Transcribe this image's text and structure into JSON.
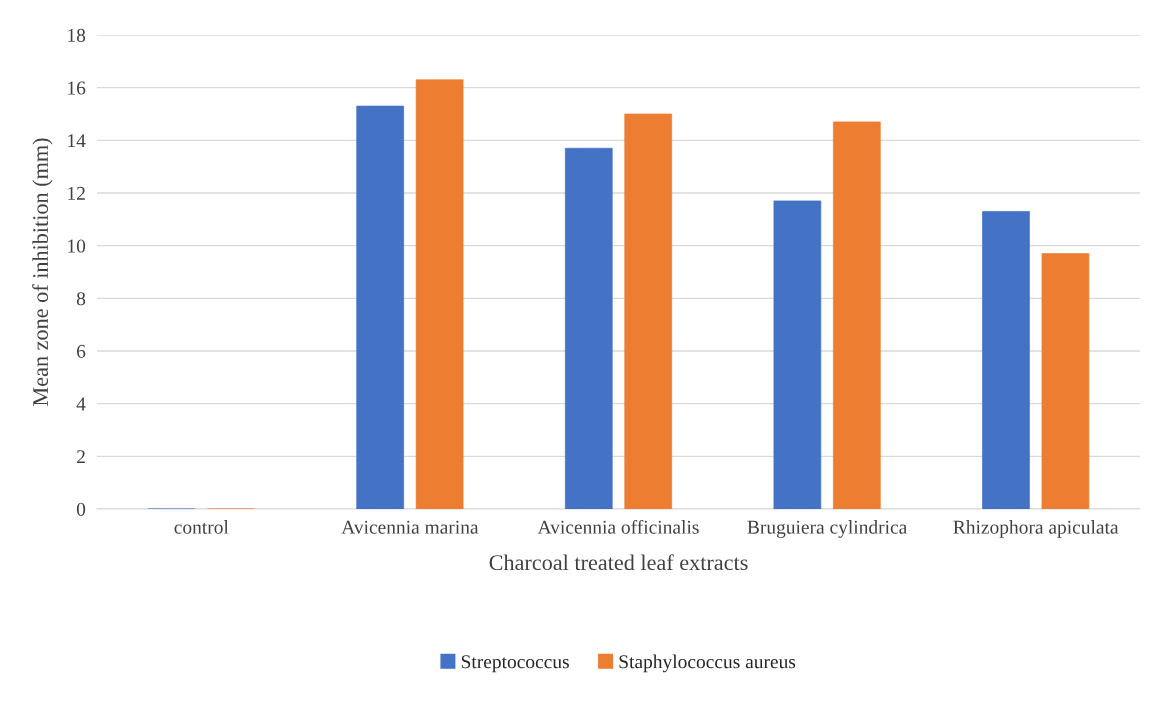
{
  "chart_data": {
    "type": "bar",
    "xlabel": "Charcoal treated leaf extracts",
    "ylabel": "Mean zone of inhibition (mm)",
    "categories": [
      "control",
      "Avicennia marina",
      "Avicennia officinalis",
      "Bruguiera cylindrica",
      "Rhizophora apiculata"
    ],
    "series": [
      {
        "name": "Streptococcus",
        "color": "#4472c4",
        "values": [
          0,
          15.3,
          13.7,
          11.7,
          11.3
        ]
      },
      {
        "name": "Staphylococcus aureus",
        "color": "#ed7d31",
        "values": [
          0,
          16.3,
          15,
          14.7,
          9.7
        ]
      }
    ],
    "ylim": [
      0,
      18
    ],
    "yticks": [
      0,
      2,
      4,
      6,
      8,
      10,
      12,
      14,
      16,
      18
    ],
    "grid": "y",
    "legend": "bottom"
  }
}
